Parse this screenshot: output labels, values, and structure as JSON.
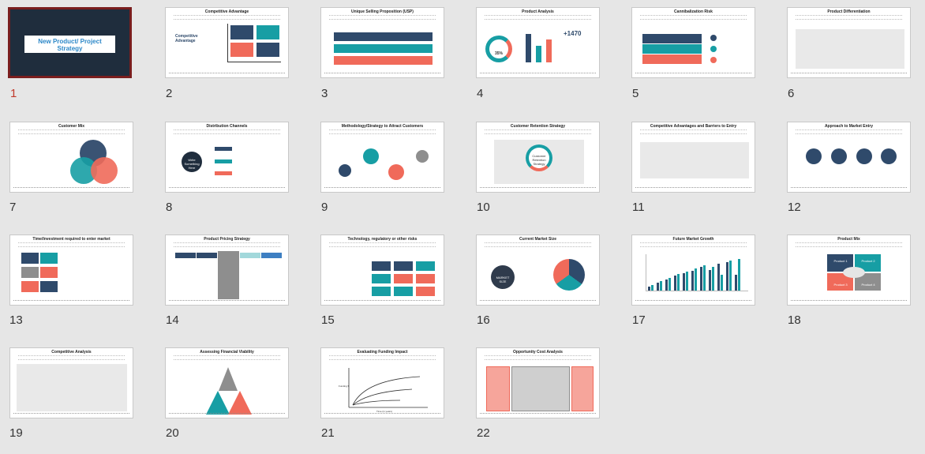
{
  "slides": [
    {
      "n": "1",
      "title": "",
      "main": "New Product/ Project Strategy"
    },
    {
      "n": "2",
      "title": "Competitive Advantage"
    },
    {
      "n": "3",
      "title": "Unique Selling Proposition (USP)"
    },
    {
      "n": "4",
      "title": "Product Analysis"
    },
    {
      "n": "5",
      "title": "Cannibalization Risk"
    },
    {
      "n": "6",
      "title": "Product Differentiation"
    },
    {
      "n": "7",
      "title": "Customer Mix"
    },
    {
      "n": "8",
      "title": "Distribution Channels"
    },
    {
      "n": "9",
      "title": "Methodology/Strategy to Attract Customers"
    },
    {
      "n": "10",
      "title": "Customer Retention Strategy"
    },
    {
      "n": "11",
      "title": "Competitive Advantages and Barriers to Entry"
    },
    {
      "n": "12",
      "title": "Approach to Market Entry"
    },
    {
      "n": "13",
      "title": "Time/Investment required to enter market"
    },
    {
      "n": "14",
      "title": "Product Pricing Strategy"
    },
    {
      "n": "15",
      "title": "Technology, regulatory or other risks"
    },
    {
      "n": "16",
      "title": "Current Market Size"
    },
    {
      "n": "17",
      "title": "Future Market Growth"
    },
    {
      "n": "18",
      "title": "Product Mix"
    },
    {
      "n": "19",
      "title": "Competitive Analysis"
    },
    {
      "n": "20",
      "title": "Assessing Financial Viability"
    },
    {
      "n": "21",
      "title": "Evaluating Funding Impact"
    },
    {
      "n": "22",
      "title": "Opportunity Cost Analysis"
    }
  ],
  "s2": {
    "heading": "Competitive Advantage"
  },
  "s4": {
    "pct": "35%",
    "big": "+1470"
  },
  "s8": {
    "label": "Write Something Here"
  },
  "s10": {
    "center": "Customer Retention Strategy"
  },
  "s16": {
    "label": "MARKET SIZE"
  },
  "s18": {
    "q1": "Product 1",
    "q2": "Product 2",
    "q3": "Product 3",
    "q4": "Product 4"
  },
  "s21": {
    "ylabel": "Funding $",
    "xlabel": "Time (in years)"
  },
  "colors": {
    "navy": "#2f4a6b",
    "teal": "#179ea4",
    "coral": "#f06a5a",
    "grey": "#8e8e8e",
    "selected": "#7a1e1e"
  }
}
